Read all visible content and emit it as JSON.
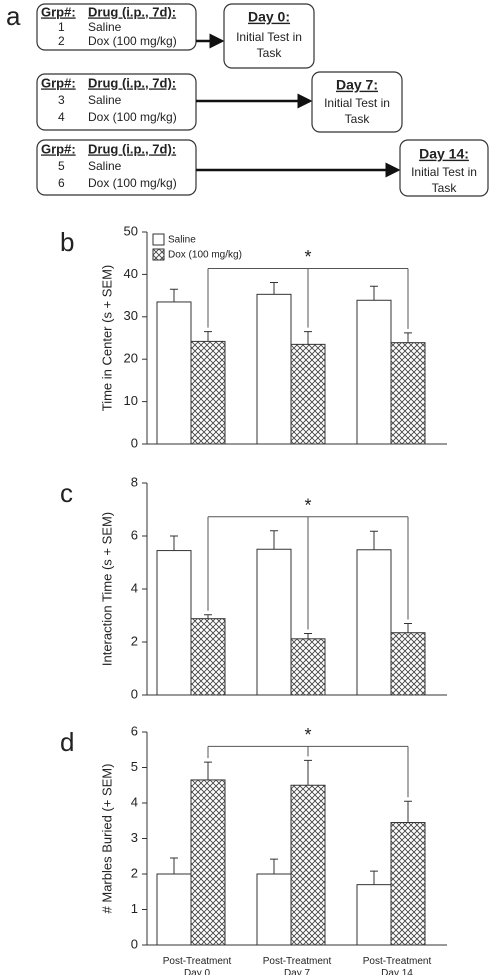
{
  "diagram": {
    "panel_label": "a",
    "rows": [
      {
        "header": [
          "Grp#:",
          "Drug (i.p., 7d):"
        ],
        "groups": [
          {
            "number": "1",
            "drug": "Saline"
          },
          {
            "number": "2",
            "drug": "Dox (100 mg/kg)"
          }
        ],
        "day": "Day 0:",
        "test": [
          "Initial Test in",
          "Task"
        ]
      },
      {
        "header": [
          "Grp#:",
          "Drug (i.p., 7d):"
        ],
        "groups": [
          {
            "number": "3",
            "drug": "Saline"
          },
          {
            "number": "4",
            "drug": "Dox (100 mg/kg)"
          }
        ],
        "day": "Day 7:",
        "test": [
          "Initial Test in",
          "Task"
        ]
      },
      {
        "header": [
          "Grp#:",
          "Drug (i.p., 7d):"
        ],
        "groups": [
          {
            "number": "5",
            "drug": "Saline"
          },
          {
            "number": "6",
            "drug": "Dox (100 mg/kg)"
          }
        ],
        "day": "Day 14:",
        "test": [
          "Initial Test in",
          "Task"
        ]
      }
    ]
  },
  "chart_data": [
    {
      "type": "bar",
      "panel_label": "b",
      "y_label": "Time in Center (s + SEM)",
      "categories": [
        null,
        null,
        null
      ],
      "series": [
        {
          "name": "Saline",
          "color": "#ffffff",
          "values": [
            33.5,
            35.3,
            33.9
          ],
          "errors": [
            3.0,
            2.8,
            3.3
          ]
        },
        {
          "name": "Dox (100 mg/kg)",
          "color": "#444444",
          "pattern": "crosshatch",
          "values": [
            24.2,
            23.5,
            23.9
          ],
          "errors": [
            2.3,
            3.0,
            2.3
          ]
        }
      ],
      "ylim": [
        0,
        50
      ],
      "yticks": [
        0,
        10,
        20,
        30,
        40,
        50
      ],
      "legend": "upper left",
      "annotation": "*"
    },
    {
      "type": "bar",
      "panel_label": "c",
      "y_label": "Interaction Time (s + SEM)",
      "categories": [
        null,
        null,
        null
      ],
      "series": [
        {
          "color": "#ffffff",
          "values": [
            5.45,
            5.5,
            5.48
          ],
          "errors": [
            0.55,
            0.7,
            0.7
          ]
        },
        {
          "color": "#444444",
          "pattern": "crosshatch",
          "values": [
            2.88,
            2.12,
            2.35
          ],
          "errors": [
            0.15,
            0.2,
            0.35
          ]
        }
      ],
      "ylim": [
        0,
        8
      ],
      "yticks": [
        0,
        2,
        4,
        6,
        8
      ],
      "annotation": "*"
    },
    {
      "type": "bar",
      "panel_label": "d",
      "y_label": "# Marbles Buried (+ SEM)",
      "categories": [
        "Post-Treatment Day 0",
        "Post-Treatment Day 7",
        "Post-Treatment Day 14"
      ],
      "series": [
        {
          "color": "#ffffff",
          "values": [
            2.0,
            2.0,
            1.7
          ],
          "errors": [
            0.45,
            0.42,
            0.38
          ]
        },
        {
          "color": "#444444",
          "pattern": "crosshatch",
          "values": [
            4.65,
            4.5,
            3.45
          ],
          "errors": [
            0.5,
            0.7,
            0.6
          ]
        }
      ],
      "ylim": [
        0,
        6
      ],
      "yticks": [
        0,
        1,
        2,
        3,
        4,
        5,
        6
      ],
      "annotation": "*"
    }
  ]
}
